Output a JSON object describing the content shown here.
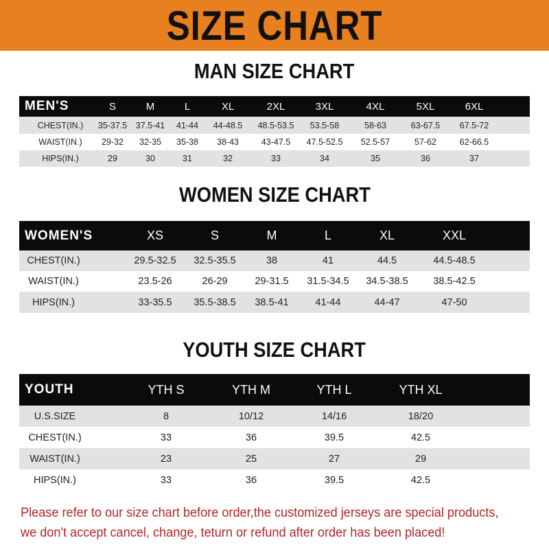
{
  "banner": "SIZE CHART",
  "colors": {
    "banner": "#e8801f",
    "header_row": "#0c0a0a",
    "stripe": "#e2e2e2",
    "note": "#b3262a"
  },
  "men": {
    "title": "MAN SIZE CHART",
    "header": [
      "MEN'S",
      "S",
      "M",
      "L",
      "XL",
      "2XL",
      "3XL",
      "4XL",
      "5XL",
      "6XL"
    ],
    "rows": [
      [
        "CHEST(IN.)",
        "35-37.5",
        "37.5-41",
        "41-44",
        "44-48.5",
        "48.5-53.5",
        "53.5-58",
        "58-63",
        "63-67.5",
        "67.5-72"
      ],
      [
        "WAIST(IN.)",
        "29-32",
        "32-35",
        "35-38",
        "38-43",
        "43-47.5",
        "47.5-52.5",
        "52.5-57",
        "57-62",
        "62-66.5"
      ],
      [
        "HIPS(IN.)",
        "29",
        "30",
        "31",
        "32",
        "33",
        "34",
        "35",
        "36",
        "37"
      ]
    ]
  },
  "women": {
    "title": "WOMEN SIZE CHART",
    "header": [
      "WOMEN'S",
      "XS",
      "S",
      "M",
      "L",
      "XL",
      "XXL"
    ],
    "rows": [
      [
        "CHEST(IN.)",
        "29.5-32.5",
        "32.5-35.5",
        "38",
        "41",
        "44.5",
        "44.5-48.5"
      ],
      [
        "WAIST(IN.)",
        "23.5-26",
        "26-29",
        "29-31.5",
        "31.5-34.5",
        "34.5-38.5",
        "38.5-42.5"
      ],
      [
        "HIPS(IN.)",
        "33-35.5",
        "35.5-38.5",
        "38.5-41",
        "41-44",
        "44-47",
        "47-50"
      ]
    ]
  },
  "youth": {
    "title": "YOUTH SIZE CHART",
    "header": [
      "YOUTH",
      "YTH S",
      "YTH M",
      "YTH L",
      "YTH XL"
    ],
    "rows": [
      [
        "U.S.SIZE",
        "8",
        "10/12",
        "14/16",
        "18/20"
      ],
      [
        "CHEST(IN.)",
        "33",
        "36",
        "39.5",
        "42.5"
      ],
      [
        "WAIST(IN.)",
        "23",
        "25",
        "27",
        "29"
      ],
      [
        "HIPS(IN.)",
        "33",
        "36",
        "39.5",
        "42.5"
      ]
    ]
  },
  "note": [
    "Please refer to our size chart before order,the customized jerseys are special products,",
    "we don't accept cancel, change, teturn or refund after order has been placed!"
  ]
}
